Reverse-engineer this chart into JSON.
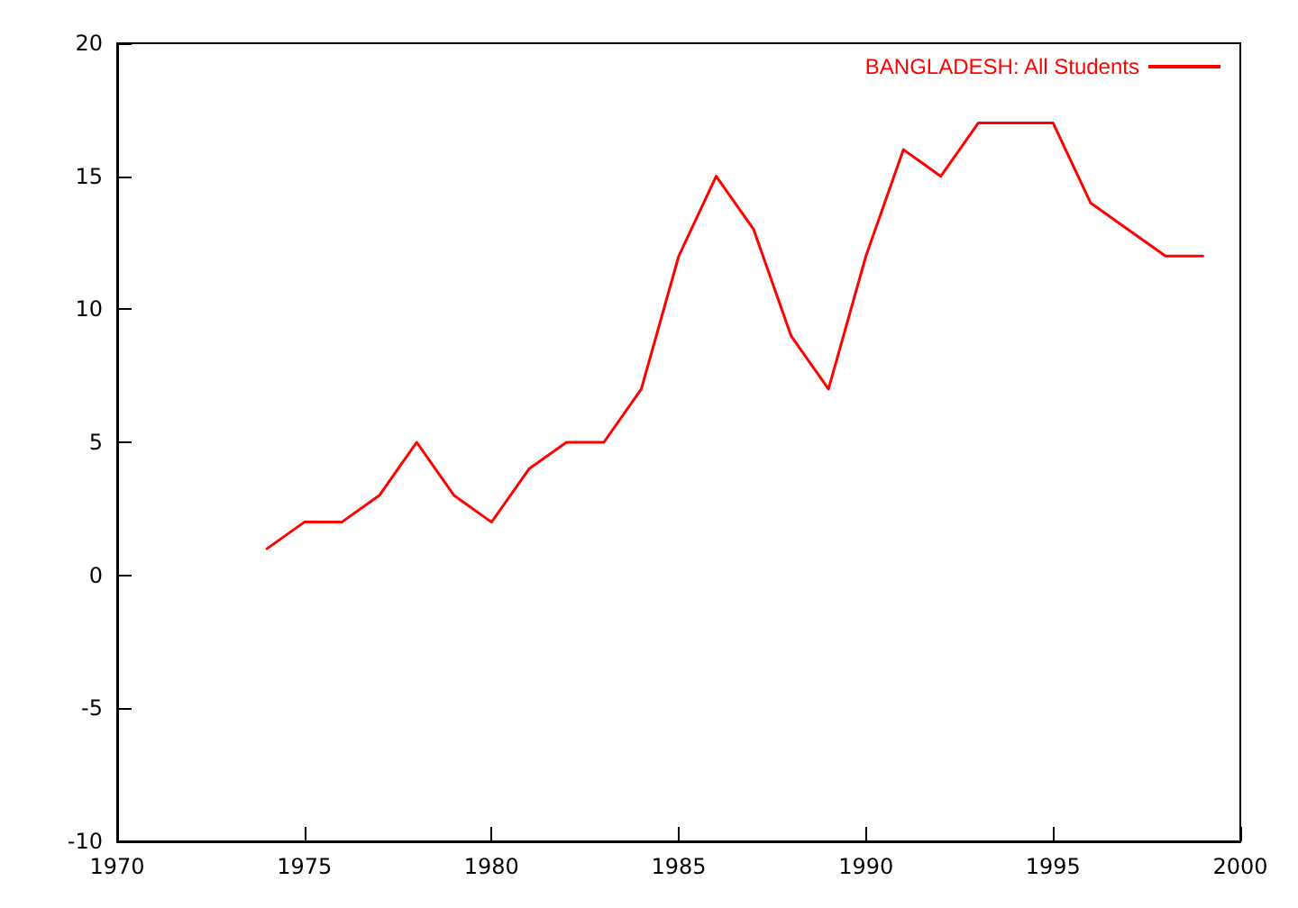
{
  "chart_data": {
    "type": "line",
    "x": [
      1974,
      1975,
      1976,
      1977,
      1978,
      1979,
      1980,
      1981,
      1982,
      1983,
      1984,
      1985,
      1986,
      1987,
      1988,
      1989,
      1990,
      1991,
      1992,
      1993,
      1994,
      1995,
      1996,
      1997,
      1998,
      1999
    ],
    "series": [
      {
        "name": "BANGLADESH: All Students",
        "color": "#ff0000",
        "values": [
          1,
          2,
          2,
          3,
          5,
          3,
          2,
          4,
          5,
          5,
          7,
          12,
          15,
          13,
          9,
          7,
          12,
          16,
          15,
          17,
          17,
          17,
          14,
          13,
          12,
          12
        ]
      }
    ],
    "xlim": [
      1970,
      2000
    ],
    "xticks": [
      1970,
      1975,
      1980,
      1985,
      1990,
      1995,
      2000
    ],
    "ylim": [
      -10,
      20
    ],
    "yticks": [
      -10,
      -5,
      0,
      5,
      10,
      15,
      20
    ],
    "legend": "top right",
    "marker": "none",
    "line_style": "solid"
  }
}
